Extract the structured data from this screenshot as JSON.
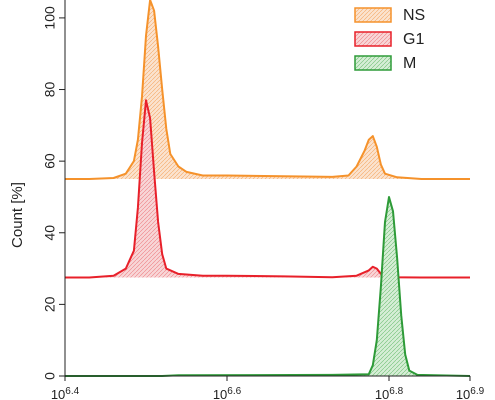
{
  "chart_data": {
    "type": "area",
    "title": "",
    "xlabel": "",
    "ylabel": "Count [%]",
    "x_scale": "log",
    "xlim": [
      25118864,
      79432823
    ],
    "ylim": [
      0,
      105
    ],
    "grid": false,
    "legend_placement": "top-right",
    "y_ticks": [
      {
        "value": 0,
        "label": "0"
      },
      {
        "value": 20,
        "label": "20"
      },
      {
        "value": 40,
        "label": "40"
      },
      {
        "value": 60,
        "label": "60"
      },
      {
        "value": 80,
        "label": "80"
      },
      {
        "value": 100,
        "label": "100"
      }
    ],
    "x_ticks": [
      {
        "value": 25118864,
        "label": "10^6.4"
      },
      {
        "value": 39810717,
        "label": "10^6.6"
      },
      {
        "value": 63095734,
        "label": "10^6.8"
      },
      {
        "value": 79432823,
        "label": "10^6.9"
      }
    ],
    "series": [
      {
        "name": "NS",
        "color": "#f5922b",
        "fill": "#f7c9a0",
        "points": [
          [
            25118864,
            55
          ],
          [
            26915348,
            55
          ],
          [
            28840315,
            55.3
          ],
          [
            29853826,
            56.5
          ],
          [
            30549211,
            60
          ],
          [
            30902954,
            66
          ],
          [
            31260794,
            78
          ],
          [
            31622777,
            95
          ],
          [
            31988951,
            105
          ],
          [
            32359366,
            102
          ],
          [
            32734069,
            92
          ],
          [
            33113112,
            80
          ],
          [
            33496544,
            69
          ],
          [
            33884416,
            62
          ],
          [
            34673685,
            58.5
          ],
          [
            35481339,
            57
          ],
          [
            37153523,
            56
          ],
          [
            39810717,
            56
          ],
          [
            46773514,
            55.8
          ],
          [
            53703180,
            55.6
          ],
          [
            56234133,
            56
          ],
          [
            57543994,
            58.5
          ],
          [
            58884366,
            63
          ],
          [
            59566214,
            66
          ],
          [
            60255959,
            67
          ],
          [
            60953689,
            64
          ],
          [
            61659500,
            59
          ],
          [
            62373484,
            56.5
          ],
          [
            64565423,
            55.5
          ],
          [
            69183097,
            55
          ],
          [
            79432823,
            55
          ]
        ]
      },
      {
        "name": "G1",
        "color": "#e8202a",
        "fill": "#f3b7b9",
        "points": [
          [
            25118864,
            27.5
          ],
          [
            26915348,
            27.5
          ],
          [
            28840315,
            28
          ],
          [
            29853826,
            30
          ],
          [
            30549211,
            35
          ],
          [
            30902954,
            47
          ],
          [
            31260794,
            65
          ],
          [
            31622777,
            77
          ],
          [
            31988951,
            72
          ],
          [
            32359366,
            57
          ],
          [
            32734069,
            43
          ],
          [
            33113112,
            34
          ],
          [
            33496544,
            30
          ],
          [
            34673685,
            28.5
          ],
          [
            37153523,
            28
          ],
          [
            39810717,
            28
          ],
          [
            46773514,
            27.8
          ],
          [
            53703180,
            27.6
          ],
          [
            57543994,
            28
          ],
          [
            59566214,
            29.5
          ],
          [
            60255959,
            30.5
          ],
          [
            60953689,
            30
          ],
          [
            61659500,
            28.5
          ],
          [
            63095734,
            27.6
          ],
          [
            69183097,
            27.5
          ],
          [
            79432823,
            27.5
          ]
        ]
      },
      {
        "name": "M",
        "color": "#2e9b38",
        "fill": "#b9dfb9",
        "points": [
          [
            25118864,
            0
          ],
          [
            33113112,
            0
          ],
          [
            34673685,
            0.2
          ],
          [
            53703180,
            0.3
          ],
          [
            59566214,
            0.5
          ],
          [
            60255959,
            3
          ],
          [
            60953689,
            10
          ],
          [
            61659500,
            25
          ],
          [
            62373484,
            43
          ],
          [
            63095734,
            50
          ],
          [
            63826348,
            46
          ],
          [
            64565423,
            33
          ],
          [
            65313055,
            17
          ],
          [
            66069344,
            6
          ],
          [
            66834392,
            1.5
          ],
          [
            68391409,
            0.3
          ],
          [
            79432823,
            0
          ]
        ]
      }
    ]
  }
}
